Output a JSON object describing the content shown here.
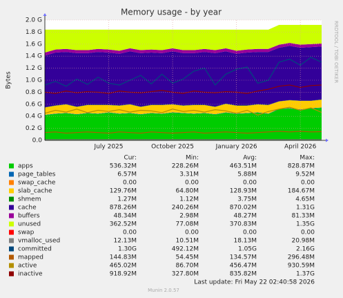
{
  "chart_data": {
    "type": "area",
    "title": "Memory usage - by year",
    "y_label": "Bytes",
    "side_note": "RRDTOOL / TOBI OETIKER",
    "footer": "Last update: Fri May 22 02:40:58 2026",
    "version": "Munin 2.0.57",
    "ylim": [
      0,
      2.0
    ],
    "yticks": [
      {
        "value": 0,
        "label": "0.0"
      },
      {
        "value": 0.2,
        "label": "0.2 G"
      },
      {
        "value": 0.4,
        "label": "0.4 G"
      },
      {
        "value": 0.6,
        "label": "0.6 G"
      },
      {
        "value": 0.8,
        "label": "0.8 G"
      },
      {
        "value": 1.0,
        "label": "1.0 G"
      },
      {
        "value": 1.2,
        "label": "1.2 G"
      },
      {
        "value": 1.4,
        "label": "1.4 G"
      },
      {
        "value": 1.6,
        "label": "1.6 G"
      },
      {
        "value": 1.8,
        "label": "1.8 G"
      },
      {
        "value": 2.0,
        "label": "2.0 G"
      }
    ],
    "grid": true,
    "categories": [
      null,
      null,
      null,
      null,
      null,
      null,
      "July 2025",
      null,
      null,
      null,
      null,
      null,
      "October 2025",
      null,
      null,
      null,
      null,
      null,
      "January 2026",
      null,
      null,
      null,
      null,
      null,
      "April 2026",
      null,
      null
    ],
    "stat_headers": [
      "Cur:",
      "Min:",
      "Avg:",
      "Max:"
    ],
    "series": [
      {
        "name": "apps",
        "color": "#00cc00",
        "style": "area",
        "stats": [
          "536.32M",
          "228.26M",
          "463.51M",
          "828.87M"
        ],
        "values": [
          0.42,
          0.44,
          0.45,
          0.43,
          0.45,
          0.44,
          0.46,
          0.44,
          0.45,
          0.43,
          0.45,
          0.44,
          0.46,
          0.45,
          0.44,
          0.45,
          0.43,
          0.46,
          0.44,
          0.45,
          0.46,
          0.44,
          0.52,
          0.53,
          0.51,
          0.53,
          0.54
        ]
      },
      {
        "name": "page_tables",
        "color": "#0066b3",
        "style": "area",
        "stats": [
          "6.57M",
          "3.31M",
          "5.88M",
          "9.52M"
        ],
        "values": [
          0.006,
          0.006,
          0.006,
          0.006,
          0.006,
          0.006,
          0.006,
          0.006,
          0.006,
          0.006,
          0.006,
          0.006,
          0.006,
          0.006,
          0.006,
          0.006,
          0.006,
          0.006,
          0.006,
          0.006,
          0.006,
          0.006,
          0.006,
          0.006,
          0.006,
          0.006,
          0.006
        ]
      },
      {
        "name": "swap_cache",
        "color": "#ff8000",
        "style": "area",
        "stats": [
          "0.00",
          "0.00",
          "0.00",
          "0.00"
        ],
        "values": [
          0,
          0,
          0,
          0,
          0,
          0,
          0,
          0,
          0,
          0,
          0,
          0,
          0,
          0,
          0,
          0,
          0,
          0,
          0,
          0,
          0,
          0,
          0,
          0,
          0,
          0,
          0
        ]
      },
      {
        "name": "slab_cache",
        "color": "#ffcc00",
        "style": "area",
        "stats": [
          "129.76M",
          "64.80M",
          "128.93M",
          "184.67M"
        ],
        "values": [
          0.12,
          0.13,
          0.14,
          0.12,
          0.13,
          0.14,
          0.12,
          0.13,
          0.14,
          0.12,
          0.13,
          0.14,
          0.13,
          0.12,
          0.14,
          0.13,
          0.12,
          0.14,
          0.13,
          0.12,
          0.13,
          0.14,
          0.12,
          0.13,
          0.14,
          0.12,
          0.13
        ]
      },
      {
        "name": "shmem",
        "color": "#008f00",
        "style": "area",
        "stats": [
          "1.27M",
          "1.12M",
          "3.75M",
          "4.65M"
        ],
        "values": [
          0.004,
          0.004,
          0.004,
          0.004,
          0.004,
          0.004,
          0.004,
          0.004,
          0.004,
          0.004,
          0.004,
          0.004,
          0.004,
          0.004,
          0.004,
          0.004,
          0.004,
          0.004,
          0.004,
          0.004,
          0.004,
          0.004,
          0.004,
          0.004,
          0.004,
          0.004,
          0.004
        ]
      },
      {
        "name": "cache",
        "color": "#330099",
        "style": "area",
        "stats": [
          "878.26M",
          "240.26M",
          "870.02M",
          "1.31G"
        ],
        "values": [
          0.86,
          0.88,
          0.87,
          0.89,
          0.86,
          0.88,
          0.87,
          0.86,
          0.88,
          0.89,
          0.87,
          0.86,
          0.88,
          0.87,
          0.86,
          0.88,
          0.89,
          0.87,
          0.86,
          0.88,
          0.87,
          0.88,
          0.89,
          0.9,
          0.88,
          0.89,
          0.88
        ]
      },
      {
        "name": "buffers",
        "color": "#990099",
        "style": "area",
        "stats": [
          "48.34M",
          "2.98M",
          "48.27M",
          "81.33M"
        ],
        "values": [
          0.05,
          0.05,
          0.05,
          0.05,
          0.05,
          0.05,
          0.05,
          0.05,
          0.05,
          0.05,
          0.05,
          0.05,
          0.05,
          0.05,
          0.05,
          0.05,
          0.05,
          0.05,
          0.05,
          0.05,
          0.05,
          0.05,
          0.05,
          0.05,
          0.05,
          0.05,
          0.05
        ]
      },
      {
        "name": "unused",
        "color": "#ccff00",
        "style": "area",
        "stats": [
          "362.52M",
          "77.08M",
          "370.83M",
          "1.35G"
        ],
        "values": [
          0.38,
          0.33,
          0.32,
          0.34,
          0.34,
          0.32,
          0.33,
          0.35,
          0.31,
          0.34,
          0.33,
          0.34,
          0.31,
          0.34,
          0.34,
          0.32,
          0.34,
          0.31,
          0.35,
          0.33,
          0.32,
          0.32,
          0.33,
          0.3,
          0.33,
          0.32,
          0.31
        ]
      },
      {
        "name": "swap",
        "color": "#ff0000",
        "style": "area",
        "stats": [
          "0.00",
          "0.00",
          "0.00",
          "0.00"
        ],
        "values": [
          0,
          0,
          0,
          0,
          0,
          0,
          0,
          0,
          0,
          0,
          0,
          0,
          0,
          0,
          0,
          0,
          0,
          0,
          0,
          0,
          0,
          0,
          0,
          0,
          0,
          0,
          0
        ]
      },
      {
        "name": "vmalloc_used",
        "color": "#808080",
        "style": "line",
        "stats": [
          "12.13M",
          "10.51M",
          "18.13M",
          "20.98M"
        ],
        "values": [
          0.012,
          0.012,
          0.012,
          0.012,
          0.012,
          0.012,
          0.012,
          0.012,
          0.012,
          0.012,
          0.012,
          0.012,
          0.012,
          0.012,
          0.012,
          0.012,
          0.012,
          0.012,
          0.012,
          0.012,
          0.012,
          0.012,
          0.012,
          0.012,
          0.012,
          0.012,
          0.012
        ]
      },
      {
        "name": "committed",
        "color": "#00487d",
        "style": "line",
        "stats": [
          "1.30G",
          "492.12M",
          "1.05G",
          "2.16G"
        ],
        "values": [
          0.92,
          0.98,
          0.9,
          1.02,
          0.93,
          1.05,
          0.95,
          0.92,
          1.0,
          1.08,
          0.94,
          1.1,
          0.95,
          1.02,
          1.15,
          1.2,
          0.92,
          1.1,
          1.18,
          1.22,
          0.95,
          1.0,
          1.3,
          1.35,
          1.25,
          1.38,
          1.3
        ]
      },
      {
        "name": "mapped",
        "color": "#b35a00",
        "style": "line",
        "stats": [
          "144.83M",
          "54.45M",
          "134.57M",
          "296.48M"
        ],
        "values": [
          0.13,
          0.14,
          0.12,
          0.13,
          0.14,
          0.13,
          0.12,
          0.14,
          0.13,
          0.12,
          0.14,
          0.13,
          0.12,
          0.13,
          0.14,
          0.12,
          0.13,
          0.14,
          0.13,
          0.12,
          0.13,
          0.14,
          0.15,
          0.14,
          0.15,
          0.14,
          0.145
        ]
      },
      {
        "name": "active",
        "color": "#b38f00",
        "style": "line",
        "stats": [
          "465.02M",
          "86.70M",
          "456.47M",
          "930.59M"
        ],
        "values": [
          0.45,
          0.5,
          0.47,
          0.52,
          0.46,
          0.5,
          0.48,
          0.51,
          0.47,
          0.5,
          0.49,
          0.46,
          0.52,
          0.48,
          0.5,
          0.47,
          0.51,
          0.49,
          0.45,
          0.5,
          0.42,
          0.48,
          0.52,
          0.55,
          0.5,
          0.54,
          0.465
        ]
      },
      {
        "name": "inactive",
        "color": "#8f0000",
        "style": "line",
        "stats": [
          "918.92M",
          "327.80M",
          "835.82M",
          "1.37G"
        ],
        "values": [
          0.8,
          0.78,
          0.82,
          0.79,
          0.81,
          0.8,
          0.78,
          0.82,
          0.8,
          0.79,
          0.81,
          0.83,
          0.8,
          0.78,
          0.82,
          0.8,
          0.79,
          0.81,
          0.8,
          0.78,
          0.82,
          0.85,
          0.9,
          0.92,
          0.88,
          0.91,
          0.92
        ]
      }
    ]
  }
}
